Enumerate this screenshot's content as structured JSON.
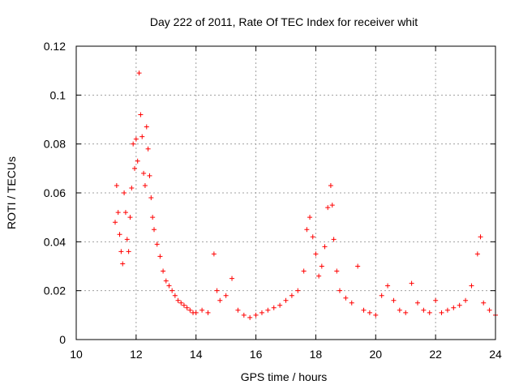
{
  "chart_data": {
    "type": "scatter",
    "title": "Day 222 of 2011, Rate Of TEC Index for receiver whit",
    "xlabel": "GPS time / hours",
    "ylabel": "ROTI / TECUs",
    "xlim": [
      10,
      24
    ],
    "ylim": [
      0,
      0.12
    ],
    "xticks": [
      "10",
      "12",
      "14",
      "16",
      "18",
      "20",
      "22",
      "24"
    ],
    "yticks": [
      "0",
      "0.02",
      "0.04",
      "0.06",
      "0.08",
      "0.1",
      "0.12"
    ],
    "grid": true,
    "marker": "+",
    "series": [
      {
        "color": "#ff0000",
        "x": [
          11.3,
          11.35,
          11.4,
          11.45,
          11.5,
          11.55,
          11.6,
          11.65,
          11.7,
          11.75,
          11.8,
          11.85,
          11.9,
          11.95,
          12.0,
          12.05,
          12.1,
          12.15,
          12.2,
          12.25,
          12.3,
          12.35,
          12.4,
          12.45,
          12.5,
          12.55,
          12.6,
          12.7,
          12.8,
          12.9,
          13.0,
          13.1,
          13.2,
          13.3,
          13.4,
          13.5,
          13.6,
          13.7,
          13.8,
          13.9,
          14.0,
          14.2,
          14.4,
          14.6,
          14.7,
          14.8,
          15.0,
          15.2,
          15.4,
          15.6,
          15.8,
          16.0,
          16.2,
          16.4,
          16.6,
          16.8,
          17.0,
          17.2,
          17.4,
          17.6,
          17.7,
          17.8,
          17.9,
          18.0,
          18.1,
          18.2,
          18.3,
          18.4,
          18.5,
          18.55,
          18.6,
          18.7,
          18.8,
          19.0,
          19.2,
          19.4,
          19.6,
          19.8,
          20.0,
          20.2,
          20.4,
          20.6,
          20.8,
          21.0,
          21.2,
          21.4,
          21.6,
          21.8,
          22.0,
          22.2,
          22.4,
          22.6,
          22.8,
          23.0,
          23.2,
          23.4,
          23.5,
          23.6,
          23.8,
          24.0
        ],
        "y": [
          0.048,
          0.063,
          0.052,
          0.043,
          0.036,
          0.031,
          0.06,
          0.052,
          0.041,
          0.036,
          0.05,
          0.062,
          0.08,
          0.07,
          0.082,
          0.073,
          0.109,
          0.092,
          0.083,
          0.068,
          0.063,
          0.087,
          0.078,
          0.067,
          0.058,
          0.05,
          0.045,
          0.039,
          0.034,
          0.028,
          0.024,
          0.022,
          0.02,
          0.018,
          0.016,
          0.015,
          0.014,
          0.013,
          0.012,
          0.011,
          0.011,
          0.012,
          0.011,
          0.035,
          0.02,
          0.016,
          0.018,
          0.025,
          0.012,
          0.01,
          0.009,
          0.01,
          0.011,
          0.012,
          0.013,
          0.014,
          0.016,
          0.018,
          0.02,
          0.028,
          0.045,
          0.05,
          0.042,
          0.035,
          0.026,
          0.03,
          0.038,
          0.054,
          0.063,
          0.055,
          0.041,
          0.028,
          0.02,
          0.017,
          0.015,
          0.03,
          0.012,
          0.011,
          0.01,
          0.018,
          0.022,
          0.016,
          0.012,
          0.011,
          0.023,
          0.015,
          0.012,
          0.011,
          0.016,
          0.011,
          0.012,
          0.013,
          0.014,
          0.016,
          0.022,
          0.035,
          0.042,
          0.015,
          0.012,
          0.01
        ]
      }
    ]
  }
}
